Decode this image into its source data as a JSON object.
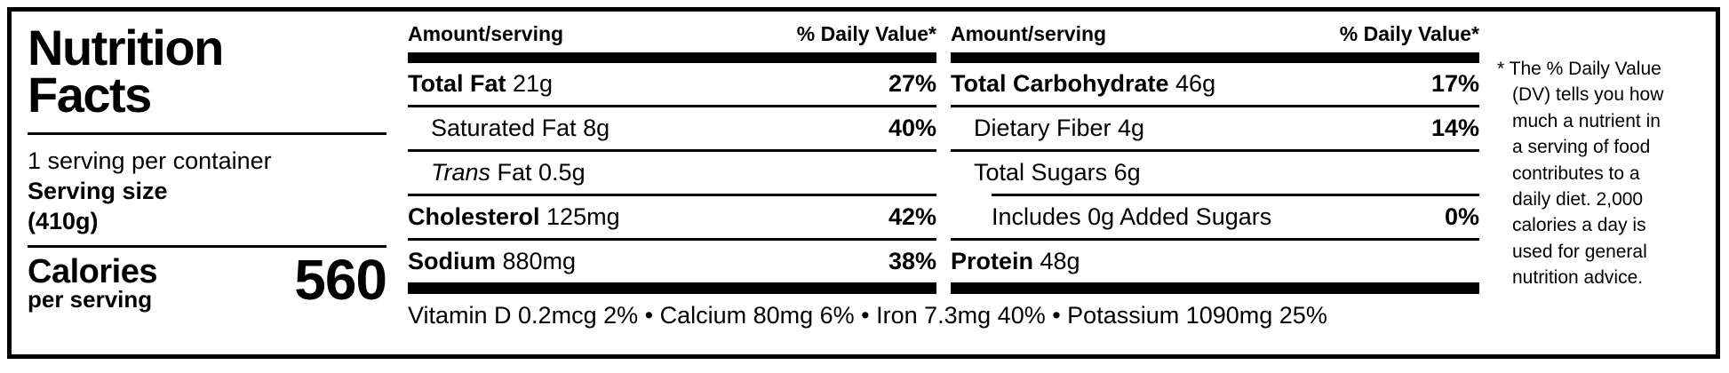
{
  "panel": {
    "title": "Nutrition\nFacts",
    "servings_per_container": "1 serving per container",
    "serving_size_label": "Serving size",
    "serving_size_value": "(410g)",
    "calories_label": "Calories",
    "calories_sublabel": "per serving",
    "calories_value": "560"
  },
  "columns": [
    {
      "header": {
        "amount": "Amount/serving",
        "daily_value": "% Daily Value*"
      },
      "rows": [
        {
          "bold": "Total Fat",
          "text": " 21g",
          "dv": "27%"
        },
        {
          "text": "Saturated Fat 8g",
          "dv": "40%"
        },
        {
          "italic": "Trans",
          "text": " Fat 0.5g",
          "dv": ""
        },
        {
          "bold": "Cholesterol",
          "text": " 125mg",
          "dv": "42%"
        },
        {
          "bold": "Sodium",
          "text": " 880mg",
          "dv": "38%"
        }
      ]
    },
    {
      "header": {
        "amount": "Amount/serving",
        "daily_value": "% Daily Value*"
      },
      "rows": [
        {
          "bold": "Total Carbohydrate",
          "text": " 46g",
          "dv": "17%"
        },
        {
          "text": "Dietary Fiber 4g",
          "dv": "14%"
        },
        {
          "text": "Total Sugars 6g",
          "dv": ""
        },
        {
          "text": "Includes 0g Added Sugars",
          "dv": "0%"
        },
        {
          "bold": "Protein",
          "text": " 48g",
          "dv": ""
        }
      ]
    }
  ],
  "micronutrients": "Vitamin D 0.2mcg 2% • Calcium 80mg 6% • Iron 7.3mg 40% • Potassium 1090mg 25%",
  "footnote": "* The % Daily Value\n(DV) tells you how\nmuch a nutrient in\na serving of food\ncontributes to a\ndaily diet. 2,000\ncalories a day is\nused for general\nnutrition advice.",
  "colors": {
    "ink": "#000000",
    "background": "#ffffff"
  }
}
